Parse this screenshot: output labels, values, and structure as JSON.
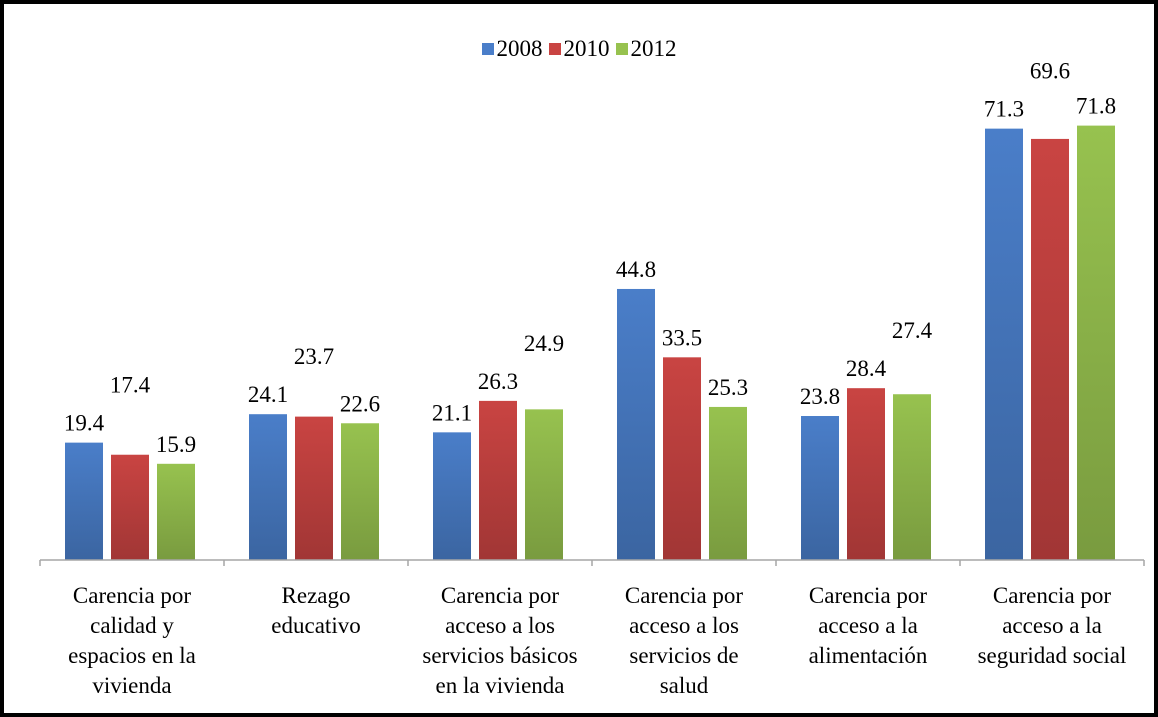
{
  "chart_data": {
    "type": "bar",
    "categories": [
      "Carencia por calidad y espacios en la vivienda",
      "Rezago educativo",
      "Carencia por acceso a los servicios básicos en la vivienda",
      "Carencia por acceso a los servicios de salud",
      "Carencia por acceso a la alimentación",
      "Carencia por acceso a la seguridad social"
    ],
    "category_lines": [
      [
        "Carencia por",
        "calidad y",
        "espacios en la",
        "vivienda"
      ],
      [
        "Rezago",
        "educativo"
      ],
      [
        "Carencia por",
        "acceso a los",
        "servicios básicos",
        "en la vivienda"
      ],
      [
        "Carencia por",
        "acceso a los",
        "servicios de",
        "salud"
      ],
      [
        "Carencia por",
        "acceso a la",
        "alimentación"
      ],
      [
        "Carencia por",
        "acceso a la",
        "seguridad social"
      ]
    ],
    "series": [
      {
        "name": "2008",
        "color": "#4A7EC9",
        "values": [
          19.4,
          24.1,
          21.1,
          44.8,
          23.8,
          71.3
        ],
        "labels": [
          "19.4",
          "24.1",
          "21.1",
          "44.8",
          "23.8",
          "71.3"
        ]
      },
      {
        "name": "2010",
        "color": "#C94442",
        "values": [
          17.4,
          23.7,
          26.3,
          33.5,
          28.4,
          69.6
        ],
        "labels": [
          "17.4",
          "23.7",
          "26.3",
          "33.5",
          "28.4",
          "69.6"
        ]
      },
      {
        "name": "2012",
        "color": "#97C24F",
        "values": [
          15.9,
          22.6,
          24.9,
          25.3,
          27.4,
          71.8
        ],
        "labels": [
          "15.9",
          "22.6",
          "24.9",
          "25.3",
          "27.4",
          "71.8"
        ]
      }
    ],
    "title": "",
    "xlabel": "",
    "ylabel": "",
    "ylim": [
      0,
      80
    ],
    "grid": false,
    "legend_position": "top-center"
  }
}
